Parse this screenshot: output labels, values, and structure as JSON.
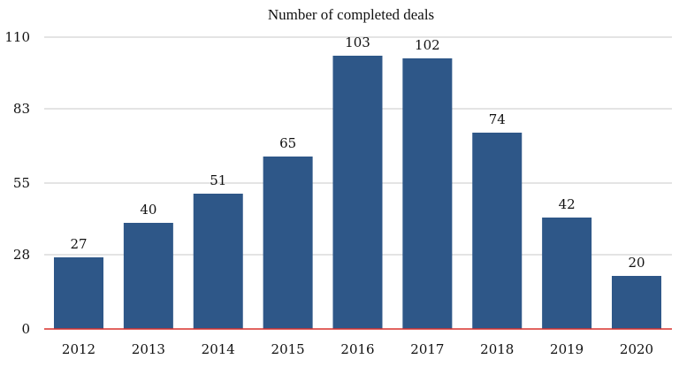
{
  "chart_data": {
    "type": "bar",
    "title": "Number of completed deals",
    "xlabel": "",
    "ylabel": "",
    "categories": [
      "2012",
      "2013",
      "2014",
      "2015",
      "2016",
      "2017",
      "2018",
      "2019",
      "2020"
    ],
    "values": [
      27,
      40,
      51,
      65,
      103,
      102,
      74,
      42,
      20
    ],
    "ylim": [
      0,
      110
    ],
    "yticks": [
      0,
      28,
      55,
      83,
      110
    ],
    "grid": true,
    "legend": "none",
    "colors": {
      "bar": "#2e5788",
      "baseline": "#d9302c",
      "grid": "#c8c8c8"
    }
  }
}
